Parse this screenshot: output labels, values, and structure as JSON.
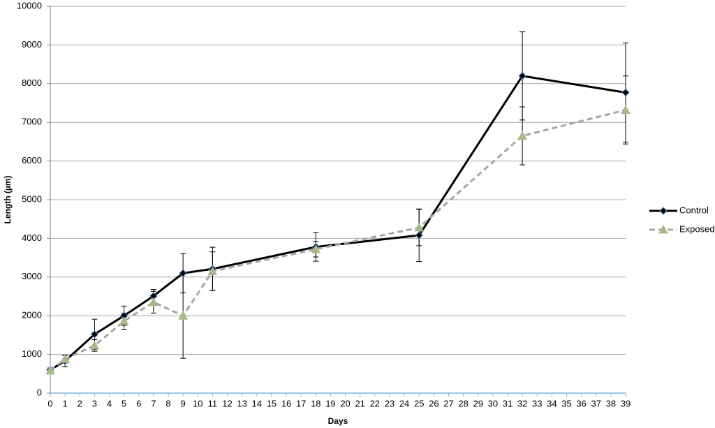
{
  "chart_data": {
    "type": "line",
    "x_label": "Days",
    "y_label": "Length (µm)",
    "x": [
      0,
      1,
      3,
      5,
      7,
      9,
      11,
      18,
      25,
      32,
      39
    ],
    "series": [
      {
        "name": "Control",
        "color": "#000000",
        "marker": "diamond",
        "dashed": false,
        "values": [
          600,
          830,
          1520,
          2000,
          2510,
          3100,
          3210,
          3780,
          4080,
          8200,
          7770
        ],
        "errors": [
          50,
          150,
          390,
          250,
          170,
          510,
          560,
          370,
          680,
          1140,
          1280
        ]
      },
      {
        "name": "Exposed",
        "color": "#a6a6a6",
        "marker": "triangle",
        "marker_color": "#a8b98a",
        "dashed": true,
        "values": [
          580,
          880,
          1230,
          1860,
          2350,
          2000,
          3150,
          3720,
          4280,
          6650,
          7320
        ],
        "errors": [
          50,
          100,
          150,
          210,
          280,
          1100,
          500,
          200,
          470,
          750,
          880
        ]
      }
    ],
    "xlim": [
      0,
      39
    ],
    "xticks": [
      0,
      1,
      2,
      3,
      4,
      5,
      6,
      7,
      8,
      9,
      10,
      11,
      12,
      13,
      14,
      15,
      16,
      17,
      18,
      19,
      20,
      21,
      22,
      23,
      24,
      25,
      26,
      27,
      28,
      29,
      30,
      31,
      32,
      33,
      34,
      35,
      36,
      37,
      38,
      39
    ],
    "ylim": [
      0,
      10000
    ],
    "yticks": [
      0,
      1000,
      2000,
      3000,
      4000,
      5000,
      6000,
      7000,
      8000,
      9000,
      10000
    ],
    "grid": true,
    "legend": "right"
  }
}
